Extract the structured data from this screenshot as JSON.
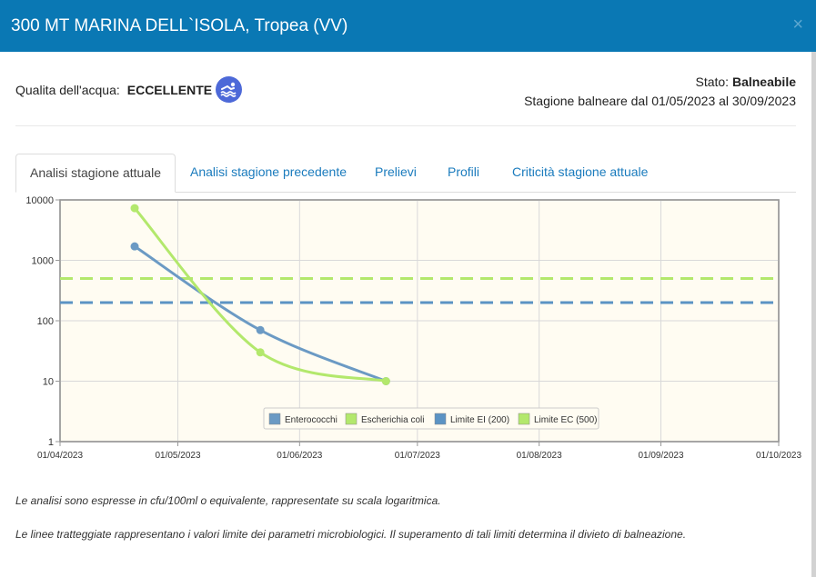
{
  "window": {
    "title": "300 MT MARINA DELL`ISOLA, Tropea (VV)",
    "close_glyph": "×"
  },
  "quality": {
    "label": "Qualita dell'acqua:",
    "value": "ECCELLENTE",
    "icon": "swimmer-icon"
  },
  "status": {
    "label": "Stato:",
    "value": "Balneabile",
    "season": "Stagione balneare dal 01/05/2023 al 30/09/2023"
  },
  "tabs": [
    {
      "label": "Analisi stagione attuale",
      "active": true
    },
    {
      "label": "Analisi stagione precedente",
      "active": false
    },
    {
      "label": "Prelievi",
      "active": false
    },
    {
      "label": "Profili",
      "active": false
    },
    {
      "label": "Criticità stagione attuale",
      "active": false
    }
  ],
  "chart_data": {
    "type": "line",
    "y_scale": "log",
    "ylim": [
      1,
      10000
    ],
    "y_ticks": [
      "1",
      "10",
      "100",
      "1000",
      "10000"
    ],
    "xlim": [
      "01/04/2023",
      "01/10/2023"
    ],
    "x_ticks": [
      "01/04/2023",
      "01/05/2023",
      "01/06/2023",
      "01/07/2023",
      "01/08/2023",
      "01/09/2023",
      "01/10/2023"
    ],
    "grid": true,
    "legend_position": "bottom-center",
    "series": [
      {
        "name": "Enterococchi",
        "color": "#6b9ac4",
        "style": "line-markers",
        "points": [
          {
            "x": "2023-04-20",
            "y": 1700
          },
          {
            "x": "2023-05-22",
            "y": 70
          },
          {
            "x": "2023-06-23",
            "y": 10
          }
        ]
      },
      {
        "name": "Escherichia coli",
        "color": "#b3e86c",
        "style": "line-markers",
        "points": [
          {
            "x": "2023-04-20",
            "y": 7300
          },
          {
            "x": "2023-05-22",
            "y": 30
          },
          {
            "x": "2023-06-23",
            "y": 10
          }
        ]
      },
      {
        "name": "Limite EI (200)",
        "color": "#5b93c4",
        "style": "dashed",
        "value": 200
      },
      {
        "name": "Limite EC (500)",
        "color": "#b3e86c",
        "style": "dashed",
        "value": 500
      }
    ]
  },
  "notes": [
    "Le analisi sono espresse in cfu/100ml o equivalente, rappresentate su scala logaritmica.",
    "Le linee tratteggiate rappresentano i valori limite dei parametri microbiologici. Il superamento di tali limiti determina il divieto di balneazione."
  ]
}
